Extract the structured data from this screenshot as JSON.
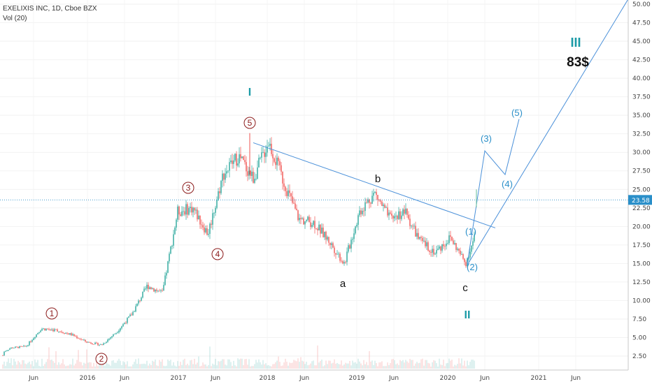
{
  "legend": {
    "symbol": "EXELIXIS INC, 1D, Cboe BZX",
    "volume": "Vol (20)"
  },
  "price_label": "23.58",
  "target_label": "83$",
  "colors": {
    "up": "#26a69a",
    "down": "#ef5350",
    "trend": "#4a90d9",
    "teal": "#1a9aa6",
    "price_tag": "#2a8fc9",
    "red_wave": "#8b1a1a"
  },
  "chart_data": {
    "type": "line",
    "title": "EXELIXIS INC, 1D, Cboe BZX",
    "xlabel": "",
    "ylabel": "",
    "ylim": [
      0,
      51.25
    ],
    "y_ticks": [
      "2.50",
      "5.00",
      "7.50",
      "10.00",
      "12.50",
      "15.00",
      "17.50",
      "20.00",
      "22.50",
      "25.00",
      "27.50",
      "30.00",
      "32.50",
      "35.00",
      "37.50",
      "40.00",
      "42.50",
      "45.00",
      "47.50",
      "50.00"
    ],
    "x_ticks": [
      "Jun",
      "2016",
      "Jun",
      "2017",
      "Jun",
      "2018",
      "Jun",
      "2019",
      "Jun",
      "2020",
      "Jun",
      "2021",
      "Jun"
    ],
    "last_price": 23.58,
    "series": [
      {
        "name": "",
        "x": [
          "2015-01",
          "2015-03",
          "2015-05",
          "2015-07",
          "2015-09",
          "2015-11",
          "2016-01",
          "2016-03",
          "2016-05",
          "2016-07",
          "2016-09",
          "2016-11",
          "2017-01",
          "2017-03",
          "2017-05",
          "2017-07",
          "2017-09",
          "2017-11",
          "2018-01",
          "2018-03",
          "2018-05",
          "2018-07",
          "2018-09",
          "2018-11",
          "2019-01",
          "2019-03",
          "2019-05",
          "2019-07",
          "2019-09",
          "2019-11",
          "2020-01",
          "2020-03",
          "2020-05"
        ],
        "values": [
          2.5,
          3.6,
          3.8,
          6.2,
          6.0,
          5.4,
          4.4,
          4.0,
          5.8,
          8.2,
          12.0,
          11.0,
          22.0,
          22.5,
          19.0,
          27.0,
          29.5,
          26.5,
          31.5,
          26.0,
          21.0,
          20.5,
          18.0,
          15.0,
          22.0,
          24.5,
          21.0,
          22.0,
          18.0,
          16.5,
          18.5,
          15.0,
          21.0
        ]
      }
    ],
    "annotations": [
      {
        "label": "1",
        "x": "2015-07",
        "y": 8.0
      },
      {
        "label": "2",
        "x": "2016-03",
        "y": 1.8
      },
      {
        "label": "3",
        "x": "2017-01",
        "y": 26.0
      },
      {
        "label": "4",
        "x": "2017-05",
        "y": 14.2
      },
      {
        "label": "5",
        "x": "2017-10",
        "y": 36.0
      },
      {
        "label": "I",
        "x": "2017-10",
        "y": 40.3
      },
      {
        "label": "a",
        "x": "2018-10",
        "y": 12.5
      },
      {
        "label": "b",
        "x": "2019-01",
        "y": 26.3
      },
      {
        "label": "c",
        "x": "2020-02",
        "y": 11.5
      },
      {
        "label": "II",
        "x": "2020-03",
        "y": 7.5
      },
      {
        "label": "(1)",
        "x": "2020-03",
        "y": 20.2
      },
      {
        "label": "(2)",
        "x": "2020-03",
        "y": 14.6
      },
      {
        "label": "(3)",
        "x": "2020-05",
        "y": 32.0
      },
      {
        "label": "(4)",
        "x": "2020-07",
        "y": 25.5
      },
      {
        "label": "(5)",
        "x": "2020-08",
        "y": 35.0
      },
      {
        "label": "III",
        "x": "2021-03",
        "y": 47.0
      },
      {
        "label": "83$",
        "x": "2021-03",
        "y": 43.0
      }
    ]
  }
}
